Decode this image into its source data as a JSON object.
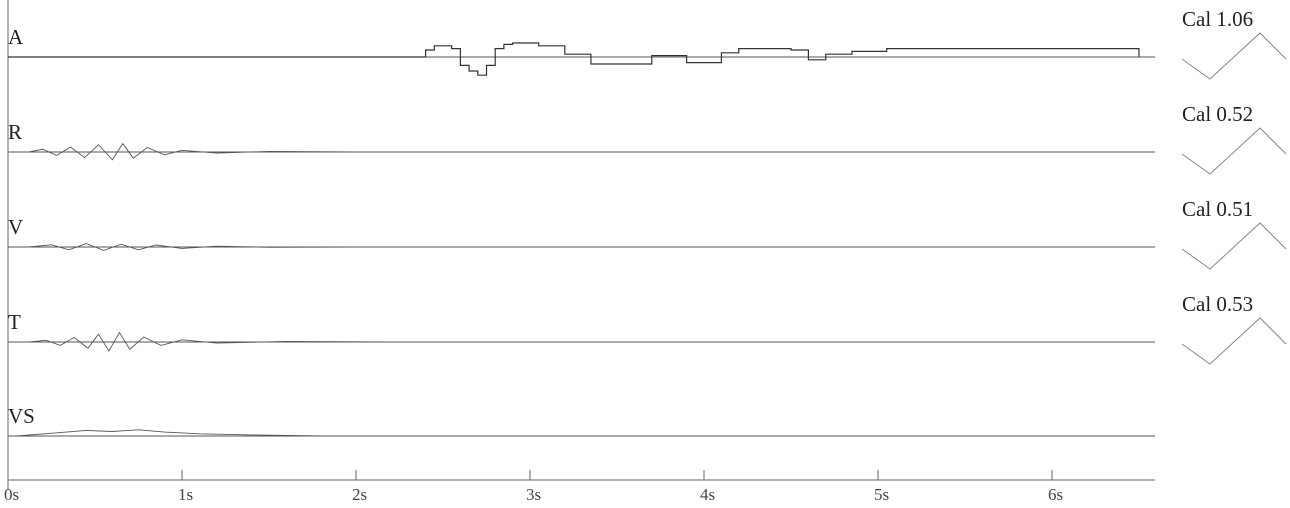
{
  "chart_data": {
    "type": "line",
    "xlabel": "",
    "ylabel": "",
    "xlim": [
      0,
      6.5
    ],
    "x_tick_labels": [
      "0s",
      "1s",
      "2s",
      "3s",
      "4s",
      "5s",
      "6s"
    ],
    "x_ticks": [
      0,
      1,
      2,
      3,
      4,
      5,
      6
    ],
    "grid": false,
    "channels": [
      {
        "name": "A",
        "cal": "Cal 1.06",
        "x": [
          0,
          2.4,
          2.45,
          2.55,
          2.6,
          2.65,
          2.7,
          2.75,
          2.8,
          2.85,
          2.9,
          3.05,
          3.2,
          3.35,
          3.55,
          3.7,
          3.9,
          4.1,
          4.2,
          4.5,
          4.6,
          4.7,
          4.85,
          5.05,
          6.5
        ],
        "values": [
          0,
          0.25,
          0.4,
          0.3,
          -0.3,
          -0.5,
          -0.65,
          -0.3,
          0.3,
          0.45,
          0.5,
          0.4,
          0.1,
          -0.25,
          -0.25,
          0.05,
          -0.2,
          0.15,
          0.3,
          0.25,
          -0.1,
          0.1,
          0.2,
          0.3,
          0
        ]
      },
      {
        "name": "R",
        "cal": "Cal 0.52",
        "x": [
          0.12,
          0.2,
          0.28,
          0.36,
          0.44,
          0.52,
          0.6,
          0.66,
          0.72,
          0.8,
          0.9,
          1.0,
          1.2,
          1.5,
          2.0,
          3.0,
          6.5
        ],
        "values": [
          0,
          0.1,
          -0.12,
          0.18,
          -0.2,
          0.26,
          -0.28,
          0.3,
          -0.22,
          0.16,
          -0.1,
          0.06,
          -0.04,
          0.02,
          0,
          0,
          0
        ]
      },
      {
        "name": "V",
        "cal": "Cal 0.51",
        "x": [
          0.12,
          0.25,
          0.35,
          0.45,
          0.55,
          0.65,
          0.75,
          0.85,
          1.0,
          1.2,
          1.5,
          2.0,
          6.5
        ],
        "values": [
          0,
          0.08,
          -0.1,
          0.12,
          -0.12,
          0.1,
          -0.1,
          0.07,
          -0.05,
          0.03,
          -0.01,
          0,
          0
        ]
      },
      {
        "name": "T",
        "cal": "Cal 0.53",
        "x": [
          0.12,
          0.22,
          0.3,
          0.38,
          0.46,
          0.52,
          0.58,
          0.64,
          0.7,
          0.78,
          0.88,
          1.0,
          1.2,
          1.6,
          2.2,
          6.5
        ],
        "values": [
          0,
          0.06,
          -0.12,
          0.16,
          -0.22,
          0.28,
          -0.32,
          0.34,
          -0.26,
          0.18,
          -0.12,
          0.08,
          -0.04,
          0.02,
          0,
          0
        ]
      },
      {
        "name": "VS",
        "cal": "",
        "x": [
          0.05,
          0.3,
          0.45,
          0.6,
          0.75,
          0.9,
          1.1,
          1.4,
          1.8,
          6.5
        ],
        "values": [
          0,
          0.12,
          0.2,
          0.16,
          0.22,
          0.14,
          0.08,
          0.04,
          0,
          0
        ]
      }
    ]
  }
}
